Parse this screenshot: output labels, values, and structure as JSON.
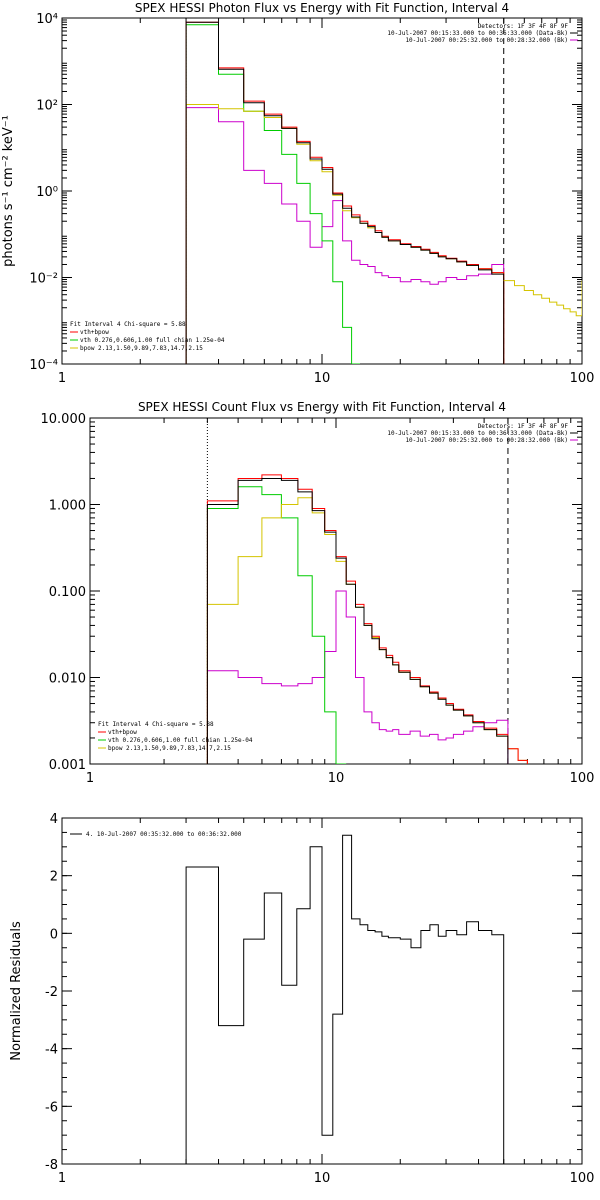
{
  "colors": {
    "axis": "#000000",
    "total": "#ff0000",
    "vth": "#00cc00",
    "bpow": "#d4c400",
    "data": "#000000",
    "bk": "#cc00cc"
  },
  "chart_data": [
    {
      "type": "line",
      "title": "SPEX HESSI Photon Flux vs Energy with Fit Function, Interval 4",
      "ylabel": "photons s⁻¹ cm⁻² keV⁻¹",
      "xlabel": "",
      "xscale": "log",
      "yscale": "log",
      "xlim": [
        1,
        100
      ],
      "ylim": [
        0.0001,
        10000
      ],
      "xticks": [
        "1",
        "10",
        "100"
      ],
      "yticks": [
        "10⁻⁴",
        "10⁻²",
        "10⁰",
        "10²",
        "10⁴"
      ],
      "ytick_values": [
        0.0001,
        0.01,
        1,
        100,
        10000
      ],
      "legend_top": [
        "Detectors: 1F 3F 4F 8F 9F",
        "10-Jul-2007 00:15:33.000 to 00:36:33.000 (Data-Bk)",
        "10-Jul-2007 00:25:32.000 to 00:28:32.000 (Bk)"
      ],
      "legend_bottom": [
        "Fit Interval 4   Chi-square = 5.88",
        "vth+bpow",
        "vth 0.276,0.606,1.00  full chian 1.25e-04",
        "bpow 2.13,1.50,9.89,7.83,14.7,2.15"
      ],
      "edges": [
        3,
        4,
        5,
        6,
        7,
        8,
        9,
        10,
        11,
        12,
        13,
        14,
        15,
        16,
        17,
        18,
        20,
        22,
        24,
        26,
        28,
        30,
        33,
        36,
        40,
        45,
        50
      ],
      "vlines": [
        3,
        50
      ],
      "series": [
        {
          "name": "vth+bpow",
          "color_key": "total",
          "values": [
            8000,
            700,
            120,
            60,
            30,
            14,
            6,
            3.5,
            0.9,
            0.45,
            0.28,
            0.2,
            0.16,
            0.12,
            0.09,
            0.075,
            0.06,
            0.052,
            0.045,
            0.038,
            0.032,
            0.028,
            0.024,
            0.02,
            0.016,
            0.013
          ]
        },
        {
          "name": "data",
          "color_key": "data",
          "values": [
            8000,
            650,
            110,
            55,
            28,
            13,
            5.5,
            3.2,
            0.85,
            0.4,
            0.25,
            0.18,
            0.15,
            0.11,
            0.085,
            0.07,
            0.058,
            0.05,
            0.043,
            0.036,
            0.03,
            0.027,
            0.023,
            0.019,
            0.015,
            0.012
          ]
        },
        {
          "name": "vth",
          "color_key": "vth",
          "values": [
            7000,
            500,
            70,
            25,
            7,
            1.5,
            0.3,
            0.07,
            0.008,
            0.0007,
            8e-05
          ]
        },
        {
          "name": "bpow",
          "color_key": "bpow",
          "values": [
            100,
            80,
            70,
            50,
            28,
            12,
            5,
            2.8,
            0.8,
            0.35,
            0.24,
            0.18,
            0.14,
            0.11,
            0.085,
            0.07,
            0.058,
            0.05,
            0.043,
            0.036,
            0.031,
            0.027,
            0.023,
            0.019,
            0.016,
            0.013
          ]
        },
        {
          "name": "Bk",
          "color_key": "bk",
          "values": [
            85,
            40,
            3,
            1.5,
            0.5,
            0.2,
            0.05,
            0.15,
            0.6,
            0.07,
            0.025,
            0.02,
            0.018,
            0.013,
            0.011,
            0.01,
            0.008,
            0.009,
            0.008,
            0.007,
            0.008,
            0.01,
            0.009,
            0.011,
            0.012,
            0.02
          ]
        }
      ],
      "tail": {
        "color_key": "bpow",
        "edges": [
          50,
          55,
          60,
          65,
          70,
          75,
          80,
          85,
          90,
          95,
          100
        ],
        "values": [
          0.0085,
          0.0065,
          0.005,
          0.004,
          0.0033,
          0.0027,
          0.0023,
          0.0019,
          0.0016,
          0.0013
        ]
      }
    },
    {
      "type": "line",
      "title": "SPEX HESSI Count Flux vs Energy with Fit Function, Interval 4",
      "ylabel": "",
      "xlabel": "",
      "xscale": "log",
      "yscale": "log",
      "xlim": [
        1,
        100
      ],
      "ylim": [
        0.001,
        10
      ],
      "xticks": [
        "1",
        "10",
        "100"
      ],
      "yticks": [
        "0.001",
        "0.010",
        "0.100",
        "1.000",
        "10.000"
      ],
      "ytick_values": [
        0.001,
        0.01,
        0.1,
        1,
        10
      ],
      "legend_top": [
        "Detectors: 1F 3F 4F 8F 9F",
        "10-Jul-2007 00:15:33.000 to 00:36:33.000 (Data-Bk)",
        "10-Jul-2007 00:25:32.000 to 00:28:32.000 (Bk)"
      ],
      "legend_bottom": [
        "Fit Interval 4   Chi-square = 5.88",
        "vth+bpow",
        "vth 0.276,0.606,1.00  full chian 1.25e-04",
        "bpow 2.13,1.50,9.89,7.83,14.7,2.15"
      ],
      "edges": [
        3,
        4,
        5,
        6,
        7,
        8,
        9,
        10,
        11,
        12,
        13,
        14,
        15,
        16,
        17,
        18,
        20,
        22,
        24,
        26,
        28,
        30,
        33,
        36,
        40,
        45,
        50,
        55,
        60
      ],
      "vlines": [
        3,
        50
      ],
      "series": [
        {
          "name": "vth+bpow",
          "color_key": "total",
          "values": [
            1.1,
            2.0,
            2.2,
            2.0,
            1.5,
            0.9,
            0.5,
            0.25,
            0.13,
            0.07,
            0.042,
            0.03,
            0.022,
            0.018,
            0.015,
            0.012,
            0.01,
            0.008,
            0.0068,
            0.0058,
            0.005,
            0.0043,
            0.0037,
            0.0031,
            0.0026,
            0.0022,
            0.0015,
            0.0011
          ]
        },
        {
          "name": "data",
          "color_key": "data",
          "values": [
            1.0,
            1.9,
            2.0,
            1.9,
            1.4,
            0.85,
            0.48,
            0.24,
            0.12,
            0.065,
            0.04,
            0.028,
            0.021,
            0.017,
            0.014,
            0.0115,
            0.0095,
            0.0078,
            0.0066,
            0.0056,
            0.0048,
            0.0042,
            0.0036,
            0.003,
            0.0025,
            0.0021
          ]
        },
        {
          "name": "vth",
          "color_key": "vth",
          "values": [
            0.9,
            1.6,
            1.3,
            0.7,
            0.15,
            0.03,
            0.004,
            0.0008
          ]
        },
        {
          "name": "bpow",
          "color_key": "bpow",
          "values": [
            0.07,
            0.25,
            0.7,
            1.0,
            1.2,
            0.8,
            0.45,
            0.22,
            0.12,
            0.065,
            0.04,
            0.029,
            0.021,
            0.017,
            0.014,
            0.0115,
            0.0095,
            0.0078,
            0.0066,
            0.0056,
            0.0048,
            0.0042,
            0.0036,
            0.003,
            0.0025,
            0.0021,
            0.0015,
            0.0011
          ]
        },
        {
          "name": "Bk",
          "color_key": "bk",
          "values": [
            0.012,
            0.01,
            0.0085,
            0.008,
            0.0085,
            0.01,
            0.02,
            0.1,
            0.05,
            0.01,
            0.004,
            0.003,
            0.0025,
            0.0024,
            0.0025,
            0.0022,
            0.0024,
            0.0021,
            0.0022,
            0.0019,
            0.002,
            0.0022,
            0.0024,
            0.0027,
            0.003,
            0.0032
          ]
        }
      ]
    },
    {
      "type": "line",
      "title": "",
      "ylabel": "Normalized Residuals",
      "xlabel": "",
      "xscale": "log",
      "yscale": "linear",
      "xlim": [
        1,
        100
      ],
      "ylim": [
        -8,
        4
      ],
      "xticks": [
        "1",
        "10",
        "100"
      ],
      "yticks": [
        "-8",
        "-6",
        "-4",
        "-2",
        "0",
        "2",
        "4"
      ],
      "ytick_values": [
        -8,
        -6,
        -4,
        -2,
        0,
        2,
        4
      ],
      "legend_top": [
        "4. 10-Jul-2007 00:35:32.000 to 00:36:32.000"
      ],
      "edges": [
        3,
        4,
        5,
        6,
        7,
        8,
        9,
        10,
        11,
        12,
        13,
        14,
        15,
        16,
        17,
        18,
        20,
        22,
        24,
        26,
        28,
        30,
        33,
        36,
        40,
        45,
        50
      ],
      "series": [
        {
          "name": "",
          "color_key": "data",
          "values": [
            2.3,
            -3.2,
            -0.2,
            1.4,
            -1.8,
            0.85,
            3.0,
            -7.0,
            -2.8,
            3.4,
            0.5,
            0.3,
            0.1,
            0.05,
            -0.1,
            -0.15,
            -0.2,
            -0.5,
            0.1,
            0.3,
            -0.1,
            0.1,
            -0.05,
            0.4,
            0.1,
            -0.05
          ]
        }
      ]
    }
  ]
}
